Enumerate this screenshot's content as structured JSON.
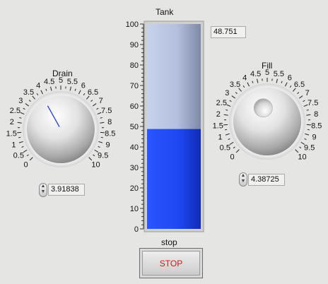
{
  "tank": {
    "label": "Tank",
    "value": 48.751,
    "value_text": "48.751",
    "scale": {
      "min": 0,
      "max": 100,
      "ticks": [
        "0",
        "10",
        "20",
        "30",
        "40",
        "50",
        "60",
        "70",
        "80",
        "90",
        "100"
      ]
    },
    "fill_color": "#1f46f2",
    "empty_color": "#b6c4e3"
  },
  "drain": {
    "label": "Drain",
    "value": 3.91838,
    "value_text": "3.91838",
    "scale": {
      "min": 0,
      "max": 10
    },
    "tick_labels": [
      "0",
      "0.5",
      "1",
      "1.5",
      "2",
      "2.5",
      "3",
      "3.5",
      "4",
      "4.5",
      "5",
      "5.5",
      "6",
      "6.5",
      "7",
      "7.5",
      "8",
      "8.5",
      "9",
      "9.5",
      "10"
    ],
    "indicator": "needle"
  },
  "fill": {
    "label": "Fill",
    "value": 4.38725,
    "value_text": "4.38725",
    "scale": {
      "min": 0,
      "max": 10
    },
    "tick_labels": [
      "0",
      "0.5",
      "1",
      "1.5",
      "2",
      "2.5",
      "3",
      "3.5",
      "4",
      "4.5",
      "5",
      "5.5",
      "6",
      "6.5",
      "7",
      "7.5",
      "8",
      "8.5",
      "9",
      "9.5",
      "10"
    ],
    "indicator": "dimple"
  },
  "stop": {
    "label": "stop",
    "button_text": "STOP",
    "text_color": "#d0141c"
  },
  "icons": {
    "stepper": "increment-decrement-arrows-icon"
  }
}
